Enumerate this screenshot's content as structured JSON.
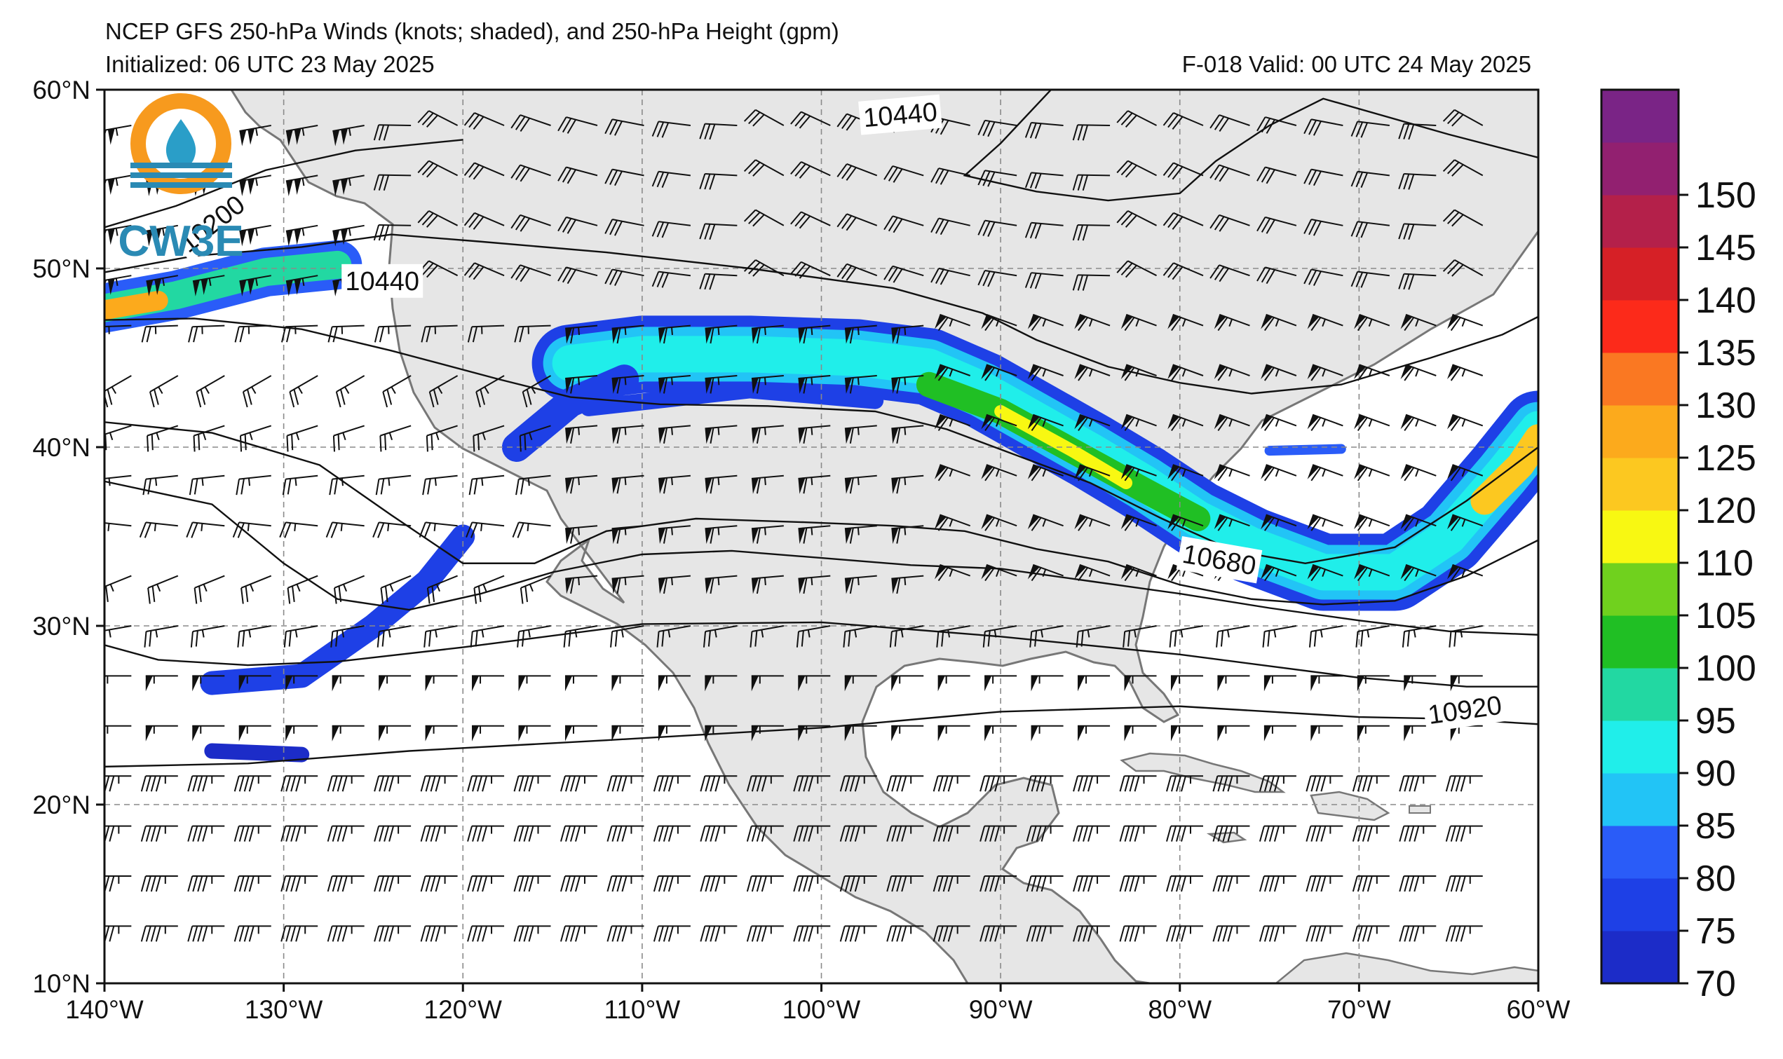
{
  "header": {
    "title": "NCEP GFS 250-hPa Winds (knots; shaded), and 250-hPa Height (gpm)",
    "initialized": "Initialized: 06 UTC 23 May 2025",
    "valid": "F-018  Valid: 00 UTC 24 May 2025"
  },
  "logo": {
    "text": "CW3E"
  },
  "map": {
    "lon_range": [
      -140,
      -60
    ],
    "lat_range": [
      10,
      60
    ],
    "lon_ticks": [
      {
        "value": -140,
        "label": "140°W"
      },
      {
        "value": -130,
        "label": "130°W"
      },
      {
        "value": -120,
        "label": "120°W"
      },
      {
        "value": -110,
        "label": "110°W"
      },
      {
        "value": -100,
        "label": "100°W"
      },
      {
        "value": -90,
        "label": "90°W"
      },
      {
        "value": -80,
        "label": "80°W"
      },
      {
        "value": -70,
        "label": "70°W"
      },
      {
        "value": -60,
        "label": "60°W"
      }
    ],
    "lat_ticks": [
      {
        "value": 60,
        "label": "60°N"
      },
      {
        "value": 50,
        "label": "50°N"
      },
      {
        "value": 40,
        "label": "40°N"
      },
      {
        "value": 30,
        "label": "30°N"
      },
      {
        "value": 20,
        "label": "20°N"
      },
      {
        "value": 10,
        "label": "10°N"
      }
    ],
    "land_color": "#e6e6e6",
    "coast_color": "#777777",
    "grid": "dashed"
  },
  "contours": {
    "labels": [
      {
        "text": "10200",
        "lon": -134,
        "lat": 52.5,
        "angle": -38
      },
      {
        "text": "10440",
        "lon": -124.5,
        "lat": 49.3,
        "angle": 0
      },
      {
        "text": "10440",
        "lon": -95.6,
        "lat": 58.6,
        "angle": -5
      },
      {
        "text": "10680",
        "lon": -77.8,
        "lat": 33.7,
        "angle": 10
      },
      {
        "text": "10920",
        "lon": -64.1,
        "lat": 25.3,
        "angle": -8
      }
    ]
  },
  "colorbar": {
    "labels": [
      "70",
      "75",
      "80",
      "85",
      "90",
      "95",
      "100",
      "105",
      "110",
      "120",
      "125",
      "130",
      "135",
      "140",
      "145",
      "150"
    ],
    "colors": [
      "#1c2cc8",
      "#1e40e6",
      "#2a5cf8",
      "#22c4f6",
      "#20eeea",
      "#22d8a2",
      "#20bf24",
      "#70d11e",
      "#f8f812",
      "#fcc820",
      "#fcaa1c",
      "#fa7822",
      "#fc2a1a",
      "#d62026",
      "#b4204a",
      "#922070",
      "#7a2486"
    ],
    "range": [
      70,
      155
    ]
  }
}
